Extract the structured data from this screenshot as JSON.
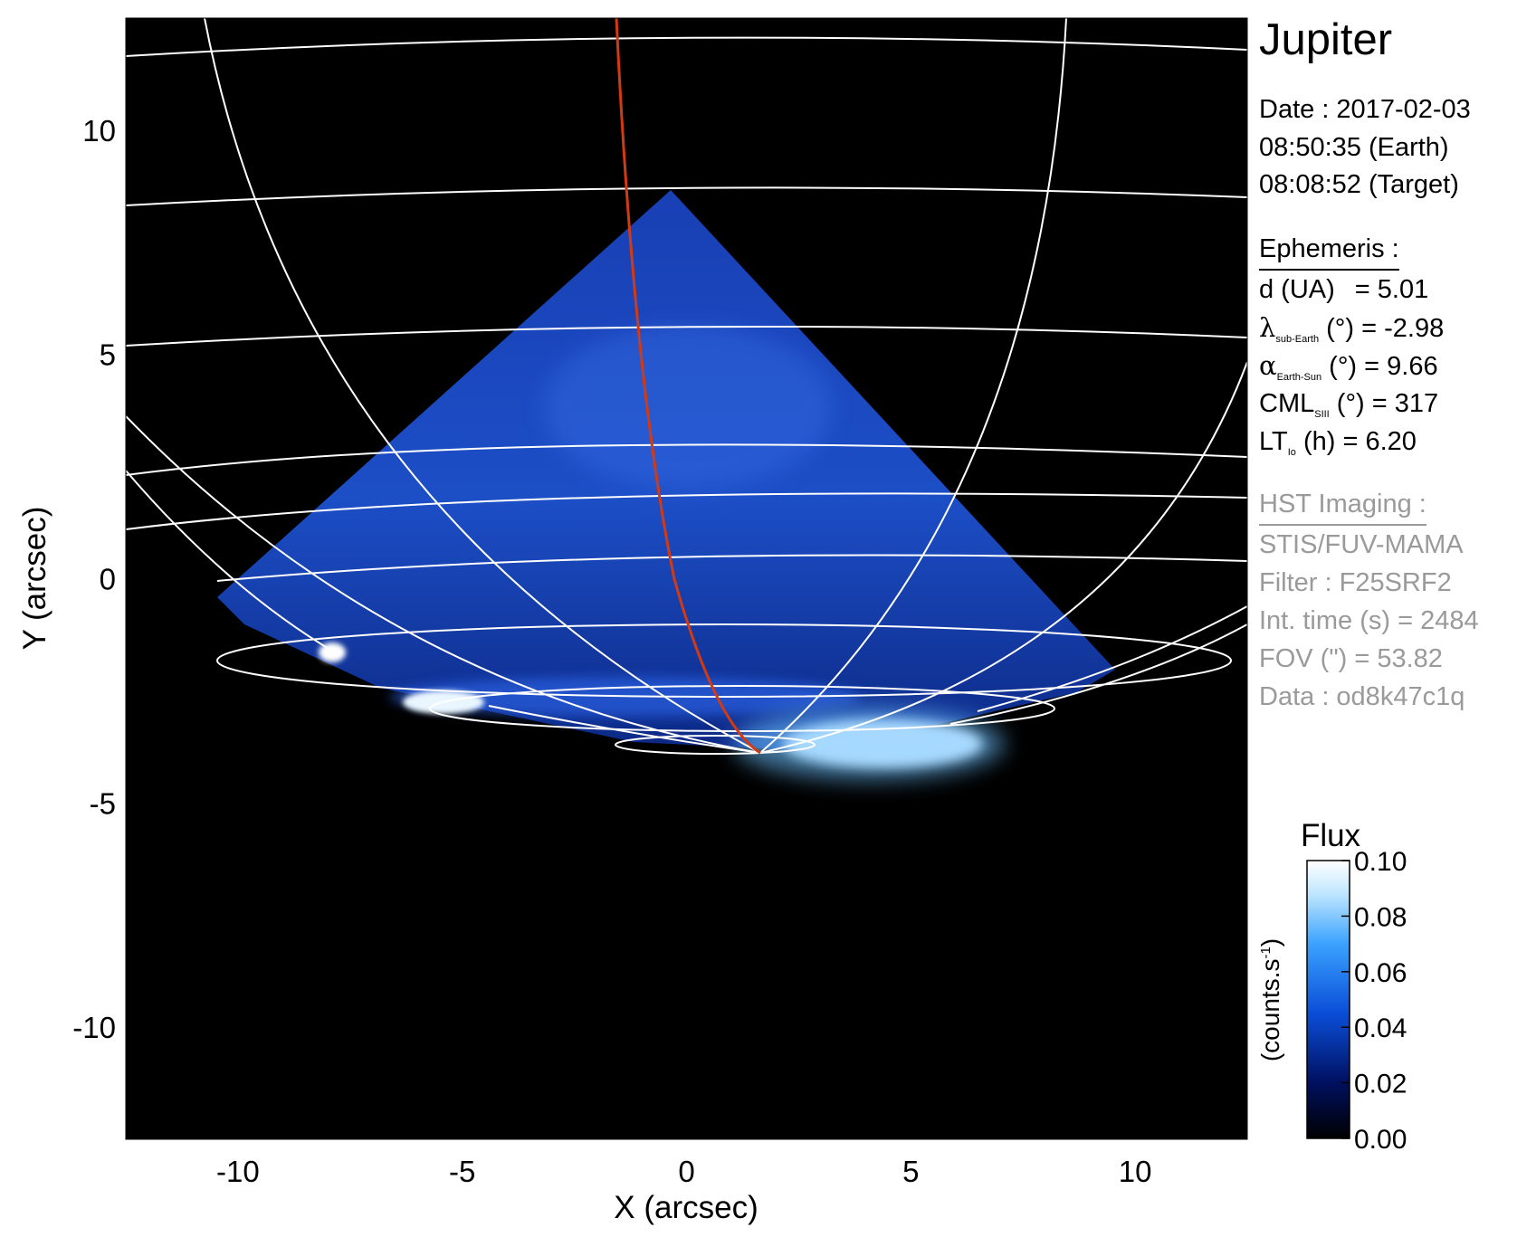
{
  "figure": {
    "target": "Jupiter",
    "date_line": "Date : 2017-02-03",
    "time_earth": "08:50:35 (Earth)",
    "time_target": "08:08:52 (Target)",
    "ephemeris": {
      "heading": "Ephemeris :",
      "d_label": "d (UA)",
      "d_value": "= 5.01",
      "lambda_symbol": "λ",
      "lambda_sub": "sub-Earth",
      "lambda_rest": " (°) = -2.98",
      "alpha_symbol": "α",
      "alpha_sub": "Earth-Sun",
      "alpha_rest": " (°) = 9.66",
      "cml_label": "CML",
      "cml_sub": "SIII",
      "cml_rest": " (°) = 317",
      "lt_label": "LT",
      "lt_sub": "Io",
      "lt_rest": " (h) = 6.20"
    },
    "hst": {
      "heading": "HST Imaging :",
      "instrument": "STIS/FUV-MAMA",
      "filter": "Filter : F25SRF2",
      "int_time": "Int. time (s) = 2484",
      "fov": "FOV (\") = 53.82",
      "data": "Data : od8k47c1q"
    }
  },
  "axes": {
    "xlabel": "X (arcsec)",
    "ylabel": "Y (arcsec)",
    "xlim": [
      -12.5,
      12.5
    ],
    "ylim": [
      -12.5,
      12.5
    ],
    "xticks": [
      -10,
      -5,
      0,
      5,
      10
    ],
    "yticks": [
      10,
      5,
      0,
      -5,
      -10
    ]
  },
  "colorbar": {
    "title": "Flux",
    "label": "(counts.s-1)",
    "label_main": "(counts.s",
    "label_sup": "-1",
    "label_end": ")",
    "range": [
      0.0,
      0.1
    ],
    "ticks": [
      "0.10",
      "0.08",
      "0.06",
      "0.04",
      "0.02",
      "0.00"
    ],
    "colors": [
      "#000000",
      "#001060",
      "#0a4ed8",
      "#3aa2ff",
      "#bfe6ff",
      "#ffffff"
    ]
  },
  "colors": {
    "background": "#000000",
    "emission": "#1c4fd0",
    "grid": "#ffffff",
    "meridian": "#d43a12",
    "auroral_oval": "#ffffff"
  }
}
